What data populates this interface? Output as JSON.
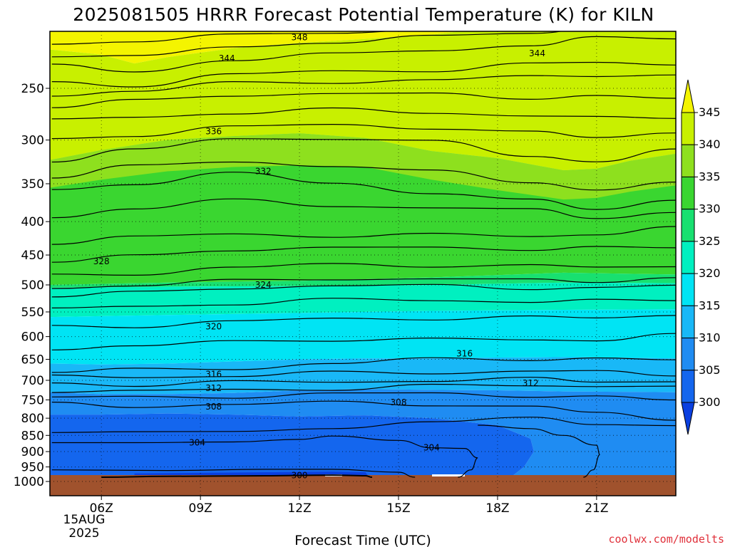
{
  "chart_data": {
    "type": "contour",
    "title": "2025081505 HRRR Forecast Potential Temperature (K) for KILN",
    "xlabel": "Forecast Time (UTC)",
    "ylabel": "",
    "x_ticks": [
      "06Z",
      "09Z",
      "12Z",
      "15Z",
      "18Z",
      "21Z"
    ],
    "x_date_label": [
      "15AUG",
      "2025"
    ],
    "x_range_hours": [
      5.0,
      23.0
    ],
    "y_ticks": [
      250,
      300,
      350,
      400,
      450,
      500,
      550,
      600,
      650,
      700,
      750,
      800,
      850,
      900,
      950,
      1000
    ],
    "y_scale": "log",
    "y_range_hpa": [
      200,
      1000
    ],
    "grid": "dotted",
    "colorbar": {
      "levels": [
        300,
        305,
        310,
        315,
        320,
        325,
        330,
        335,
        340,
        345
      ],
      "colors": [
        "#0a3fe0",
        "#1466ee",
        "#1f8cf2",
        "#19b8f7",
        "#00e4f4",
        "#00f0c0",
        "#18e070",
        "#3ad630",
        "#8ee01e",
        "#c8f000",
        "#f4f400"
      ],
      "extend": "both"
    },
    "contour_interval": 4,
    "contour_labels": [
      {
        "value": 348,
        "time": 12.0,
        "p": 209
      },
      {
        "value": 344,
        "time": 19.2,
        "p": 221
      },
      {
        "value": 344,
        "time": 9.8,
        "p": 225
      },
      {
        "value": 336,
        "time": 9.4,
        "p": 291
      },
      {
        "value": 332,
        "time": 10.9,
        "p": 335
      },
      {
        "value": 328,
        "time": 6.0,
        "p": 460
      },
      {
        "value": 324,
        "time": 10.9,
        "p": 500
      },
      {
        "value": 320,
        "time": 9.4,
        "p": 579
      },
      {
        "value": 316,
        "time": 9.4,
        "p": 685
      },
      {
        "value": 316,
        "time": 17.0,
        "p": 637
      },
      {
        "value": 312,
        "time": 9.4,
        "p": 720
      },
      {
        "value": 312,
        "time": 19.0,
        "p": 707
      },
      {
        "value": 308,
        "time": 9.4,
        "p": 768
      },
      {
        "value": 308,
        "time": 15.0,
        "p": 757
      },
      {
        "value": 304,
        "time": 8.9,
        "p": 872
      },
      {
        "value": 304,
        "time": 16.0,
        "p": 888
      },
      {
        "value": 300,
        "time": 12.0,
        "p": 979
      }
    ],
    "surface_color": "#a0522d",
    "surface_pressure_hpa": 985
  },
  "credit": "coolwx.com/modelts"
}
